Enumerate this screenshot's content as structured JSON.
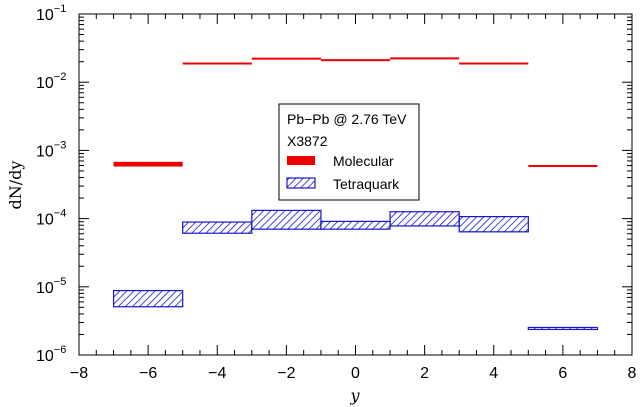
{
  "chart_data": {
    "type": "bar",
    "title": "",
    "xlabel": "y",
    "ylabel": "dN/dy",
    "xlim": [
      -8,
      8
    ],
    "ylim": [
      1e-06,
      0.1
    ],
    "yscale": "log",
    "grid": false,
    "xticks": [
      "−8",
      "−6",
      "−4",
      "−2",
      "0",
      "2",
      "4",
      "6",
      "8"
    ],
    "yticks": [
      {
        "base": "10",
        "exp": "−6"
      },
      {
        "base": "10",
        "exp": "−5"
      },
      {
        "base": "10",
        "exp": "−4"
      },
      {
        "base": "10",
        "exp": "−3"
      },
      {
        "base": "10",
        "exp": "−2"
      },
      {
        "base": "10",
        "exp": "−1"
      }
    ],
    "bins": [
      [
        -7,
        -5
      ],
      [
        -5,
        -3
      ],
      [
        -3,
        -1
      ],
      [
        -1,
        1
      ],
      [
        1,
        3
      ],
      [
        3,
        5
      ],
      [
        5,
        7
      ]
    ],
    "legend": {
      "position": "center",
      "header1": "Pb−Pb @ 2.76 TeV",
      "header2": "X3872"
    },
    "series": [
      {
        "name": "Molecular",
        "color": "#ee0000",
        "style": "solid-band",
        "low": [
          0.00058,
          0.0182,
          0.0215,
          0.0204,
          0.0217,
          0.0182,
          0.00057
        ],
        "high": [
          0.00068,
          0.0194,
          0.0228,
          0.0217,
          0.023,
          0.0194,
          0.00061
        ]
      },
      {
        "name": "Tetraquark",
        "color": "#1515cc",
        "style": "hatched-band",
        "low": [
          5.1e-06,
          6.1e-05,
          7e-05,
          7e-05,
          7.8e-05,
          6.4e-05,
          2.4e-06
        ],
        "high": [
          8.8e-06,
          8.9e-05,
          0.000132,
          9.1e-05,
          0.000126,
          0.000107,
          2.5e-06
        ]
      }
    ]
  }
}
